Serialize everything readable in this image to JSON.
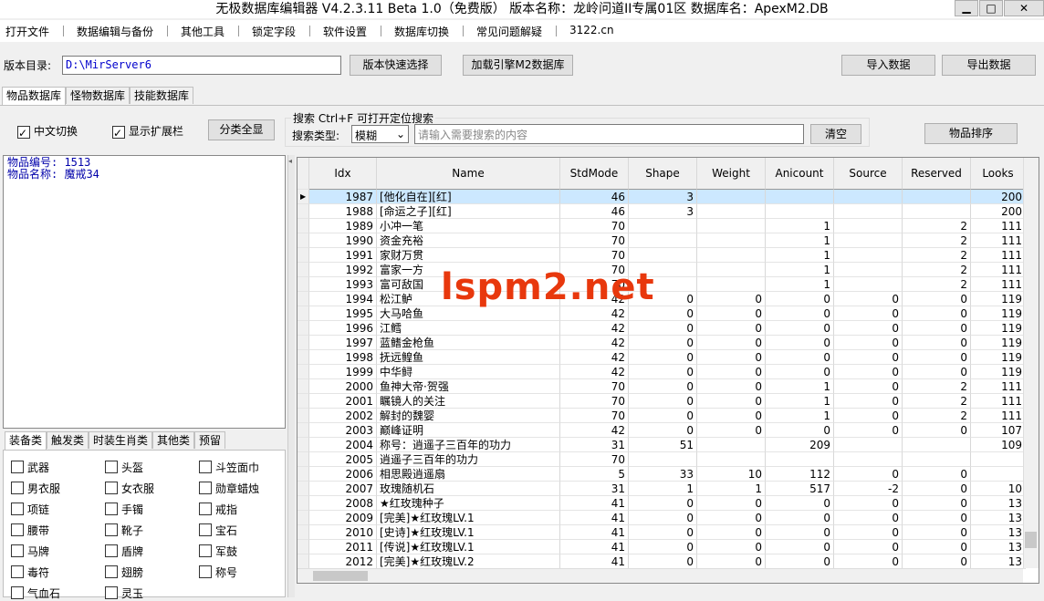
{
  "window": {
    "title": "无极数据库编辑器 V4.2.3.11    Beta 1.0（免费版）    版本名称：龙岭问道II专属01区    数据库名：ApexM2.DB"
  },
  "menu": [
    "打开文件",
    "数据编辑与备份",
    "其他工具",
    "锁定字段",
    "软件设置",
    "数据库切换",
    "常见问题解疑",
    "3122.cn"
  ],
  "toolbar": {
    "dir_label": "版本目录:",
    "dir_value": "D:\\MirServer6",
    "quick_select": "版本快速选择",
    "load_m2": "加载引擎M2数据库",
    "import": "导入数据",
    "export": "导出数据"
  },
  "tabs": [
    "物品数据库",
    "怪物数据库",
    "技能数据库"
  ],
  "options": {
    "chinese": "中文切换",
    "ext": "显示扩展栏",
    "show_all": "分类全显",
    "search_hint": "搜索  Ctrl+F 可打开定位搜索",
    "search_type_label": "搜索类型:",
    "search_type": "模糊",
    "search_placeholder": "请输入需要搜索的内容",
    "clear": "清空",
    "sort": "物品排序"
  },
  "info": [
    "物品编号: 1513",
    "物品名称: 魔戒34"
  ],
  "category_tabs": [
    "装备类",
    "触发类",
    "时装生肖类",
    "其他类",
    "预留"
  ],
  "categories": [
    "武器",
    "头盔",
    "斗笠面巾",
    "男衣服",
    "女衣服",
    "勋章蜡烛",
    "项链",
    "手镯",
    "戒指",
    "腰带",
    "靴子",
    "宝石",
    "马牌",
    "盾牌",
    "军鼓",
    "毒符",
    "翅膀",
    "称号",
    "气血石",
    "灵玉"
  ],
  "table": {
    "columns": [
      "Idx",
      "Name",
      "StdMode",
      "Shape",
      "Weight",
      "Anicount",
      "Source",
      "Reserved",
      "Looks"
    ],
    "rows": [
      [
        "1987",
        "[他化自在][红]",
        "46",
        "3",
        null,
        null,
        null,
        null,
        "200"
      ],
      [
        "1988",
        "[命运之子][红]",
        "46",
        "3",
        null,
        null,
        null,
        null,
        "200"
      ],
      [
        "1989",
        "小冲一笔",
        "70",
        null,
        null,
        "1",
        null,
        "2",
        "111"
      ],
      [
        "1990",
        "资金充裕",
        "70",
        null,
        null,
        "1",
        null,
        "2",
        "111"
      ],
      [
        "1991",
        "家财万贯",
        "70",
        null,
        null,
        "1",
        null,
        "2",
        "111"
      ],
      [
        "1992",
        "富家一方",
        "70",
        null,
        null,
        "1",
        null,
        "2",
        "111"
      ],
      [
        "1993",
        "富可敌国",
        "70",
        null,
        null,
        "1",
        null,
        "2",
        "111"
      ],
      [
        "1994",
        "松江鲈",
        "42",
        "0",
        "0",
        "0",
        "0",
        "0",
        "119"
      ],
      [
        "1995",
        "大马哈鱼",
        "42",
        "0",
        "0",
        "0",
        "0",
        "0",
        "119"
      ],
      [
        "1996",
        "江鳕",
        "42",
        "0",
        "0",
        "0",
        "0",
        "0",
        "119"
      ],
      [
        "1997",
        "蓝鳍金枪鱼",
        "42",
        "0",
        "0",
        "0",
        "0",
        "0",
        "119"
      ],
      [
        "1998",
        "抚远鳇鱼",
        "42",
        "0",
        "0",
        "0",
        "0",
        "0",
        "119"
      ],
      [
        "1999",
        "中华鲟",
        "42",
        "0",
        "0",
        "0",
        "0",
        "0",
        "119"
      ],
      [
        "2000",
        "鱼神大帝·贺强",
        "70",
        "0",
        "0",
        "1",
        "0",
        "2",
        "111"
      ],
      [
        "2001",
        "瞩镜人的关注",
        "70",
        "0",
        "0",
        "1",
        "0",
        "2",
        "111"
      ],
      [
        "2002",
        "解封的魏婴",
        "70",
        "0",
        "0",
        "1",
        "0",
        "2",
        "111"
      ],
      [
        "2003",
        "巅峰证明",
        "42",
        "0",
        "0",
        "0",
        "0",
        "0",
        "107"
      ],
      [
        "2004",
        "称号：逍遥子三百年的功力",
        "31",
        "51",
        null,
        "209",
        null,
        null,
        "109"
      ],
      [
        "2005",
        "逍遥子三百年的功力",
        "70",
        null,
        null,
        null,
        null,
        null,
        null
      ],
      [
        "2006",
        "相思殿逍遥扇",
        "5",
        "33",
        "10",
        "112",
        "0",
        "0",
        null
      ],
      [
        "2007",
        "玫瑰随机石",
        "31",
        "1",
        "1",
        "517",
        "-2",
        "0",
        "10"
      ],
      [
        "2008",
        "★红玫瑰种子",
        "41",
        "0",
        "0",
        "0",
        "0",
        "0",
        "13"
      ],
      [
        "2009",
        "[完美]★红玫瑰LV.1",
        "41",
        "0",
        "0",
        "0",
        "0",
        "0",
        "13"
      ],
      [
        "2010",
        "[史诗]★红玫瑰LV.1",
        "41",
        "0",
        "0",
        "0",
        "0",
        "0",
        "13"
      ],
      [
        "2011",
        "[传说]★红玫瑰LV.1",
        "41",
        "0",
        "0",
        "0",
        "0",
        "0",
        "13"
      ],
      [
        "2012",
        "[完美]★红玫瑰LV.2",
        "41",
        "0",
        "0",
        "0",
        "0",
        "0",
        "13"
      ]
    ]
  },
  "watermark": "lspm2.net"
}
